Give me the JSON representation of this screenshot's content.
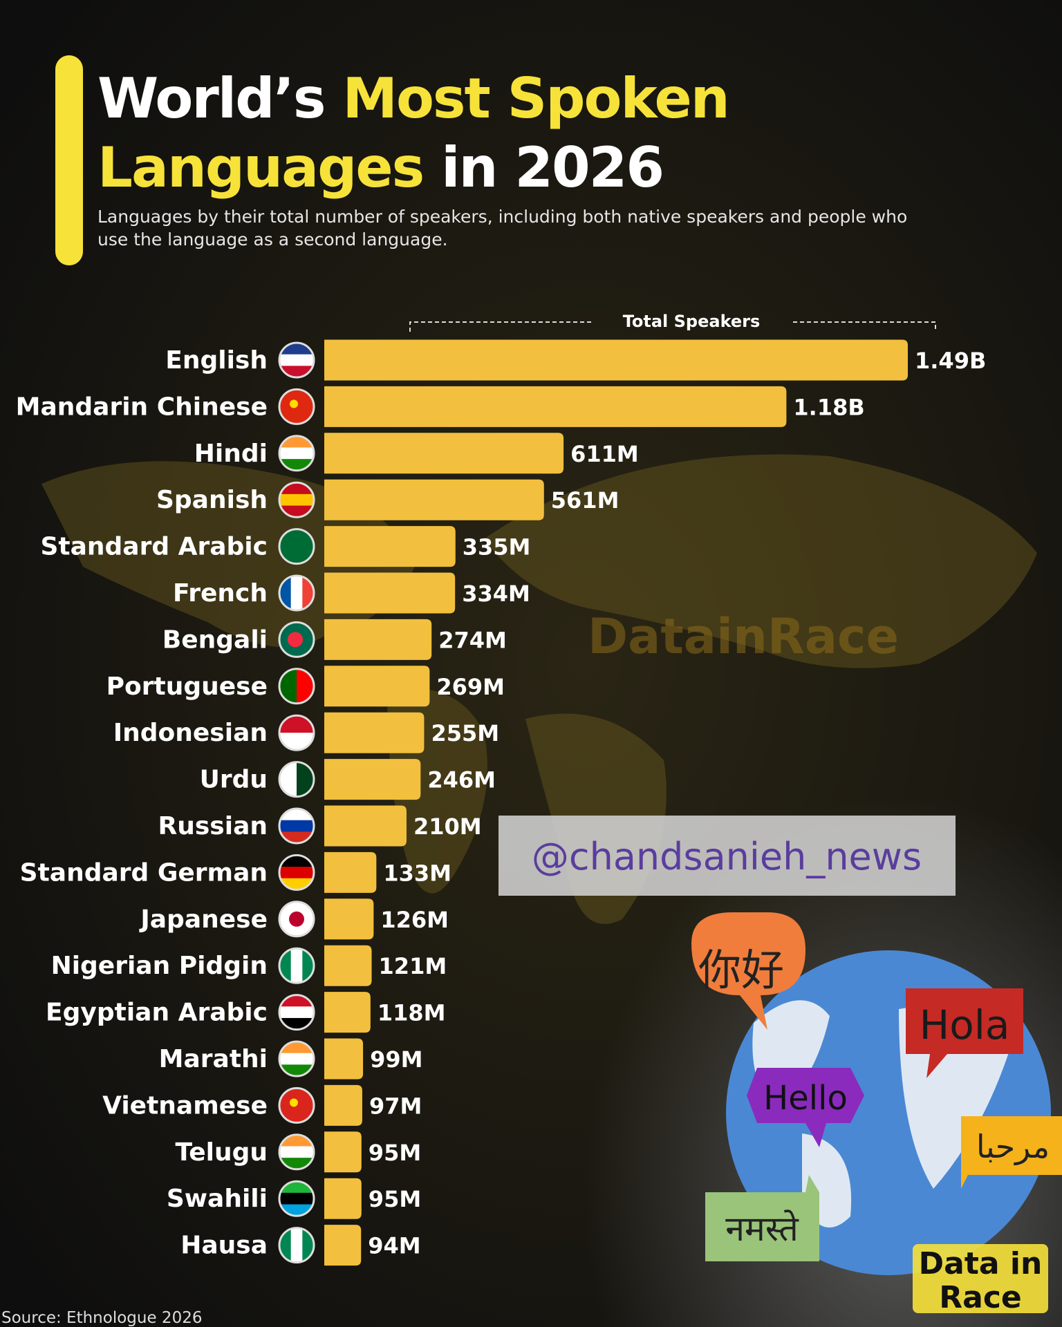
{
  "chart_data": {
    "type": "bar",
    "orientation": "horizontal",
    "title_lines": [
      [
        {
          "text": "World’s",
          "highlight": false
        },
        {
          "text": " Most Spoken",
          "highlight": true
        }
      ],
      [
        {
          "text": "Languages",
          "highlight": true
        },
        {
          "text": " in 2026",
          "highlight": false
        }
      ]
    ],
    "subtitle_lines": [
      "Languages by their total number of speakers, including both native speakers and people who",
      "use the language as a second language."
    ],
    "axis_label": "Total Speakers",
    "categories": [
      "English",
      "Mandarin Chinese",
      "Hindi",
      "Spanish",
      "Standard Arabic",
      "French",
      "Bengali",
      "Portuguese",
      "Indonesian",
      "Urdu",
      "Russian",
      "Standard German",
      "Japanese",
      "Nigerian Pidgin",
      "Egyptian Arabic",
      "Marathi",
      "Vietnamese",
      "Telugu",
      "Swahili",
      "Hausa"
    ],
    "values": [
      1490,
      1180,
      611,
      561,
      335,
      334,
      274,
      269,
      255,
      246,
      210,
      133,
      126,
      121,
      118,
      99,
      97,
      95,
      95,
      94
    ],
    "value_labels": [
      "1.49B",
      "1.18B",
      "611M",
      "561M",
      "335M",
      "334M",
      "274M",
      "269M",
      "255M",
      "246M",
      "210M",
      "133M",
      "126M",
      "121M",
      "118M",
      "99M",
      "97M",
      "95M",
      "95M",
      "94M"
    ],
    "color": "#f2c03e",
    "highlight_color": "#f7e23a",
    "source": "Source: Ethnologue 2026",
    "watermark": "@chandsanieh_news",
    "map_watermark": "DatainRace",
    "greetings": [
      "你好",
      "Hola",
      "Hello",
      "مرحبا",
      "नमस्ते"
    ],
    "logo_lines": [
      "Data in",
      "Race"
    ]
  }
}
